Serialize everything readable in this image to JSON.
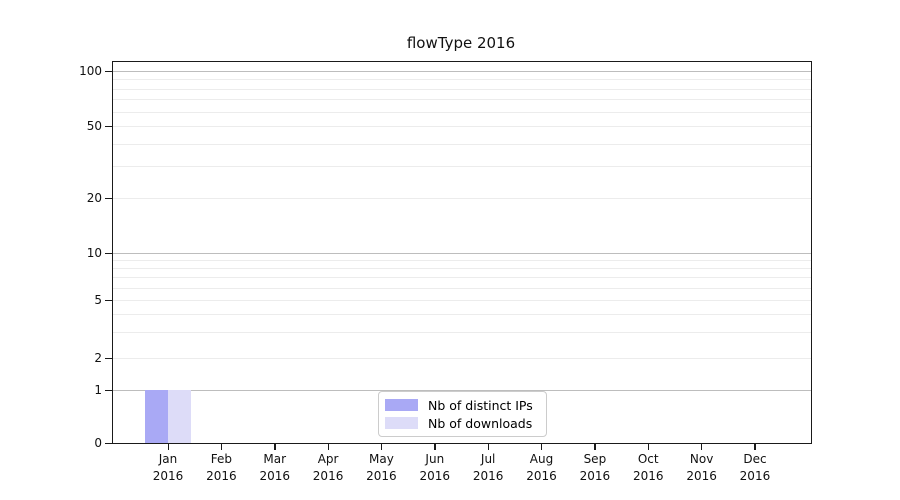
{
  "chart_data": {
    "type": "bar",
    "title": "flowType 2016",
    "categories": [
      "Jan\n2016",
      "Feb\n2016",
      "Mar\n2016",
      "Apr\n2016",
      "May\n2016",
      "Jun\n2016",
      "Jul\n2016",
      "Aug\n2016",
      "Sep\n2016",
      "Oct\n2016",
      "Nov\n2016",
      "Dec\n2016"
    ],
    "series": [
      {
        "name": "Nb of distinct IPs",
        "color": "#a9a9f5",
        "values": [
          1,
          0,
          0,
          0,
          0,
          0,
          0,
          0,
          0,
          0,
          0,
          0
        ]
      },
      {
        "name": "Nb of downloads",
        "color": "#dddcf8",
        "values": [
          1,
          0,
          0,
          0,
          0,
          0,
          0,
          0,
          0,
          0,
          0,
          0
        ]
      }
    ],
    "xlabel": "",
    "ylabel": "",
    "yscale": "symlog",
    "yticks": [
      0,
      1,
      2,
      5,
      10,
      20,
      50,
      100
    ],
    "minor_ytick_values": [
      2,
      3,
      4,
      5,
      6,
      7,
      8,
      9,
      20,
      30,
      40,
      50,
      60,
      70,
      80,
      90
    ],
    "major_grid_values": [
      1,
      10,
      100
    ],
    "ylim": [
      0,
      112
    ],
    "grid": "horizontal major gridlines at decades, faint log-spaced minor gridlines",
    "legend_position": "lower center",
    "colors": {
      "major_grid": "#bdbdbd",
      "minor_grid": "#ececec",
      "axis": "#1a1a1a",
      "background": "#ffffff",
      "text": "#111111"
    }
  }
}
